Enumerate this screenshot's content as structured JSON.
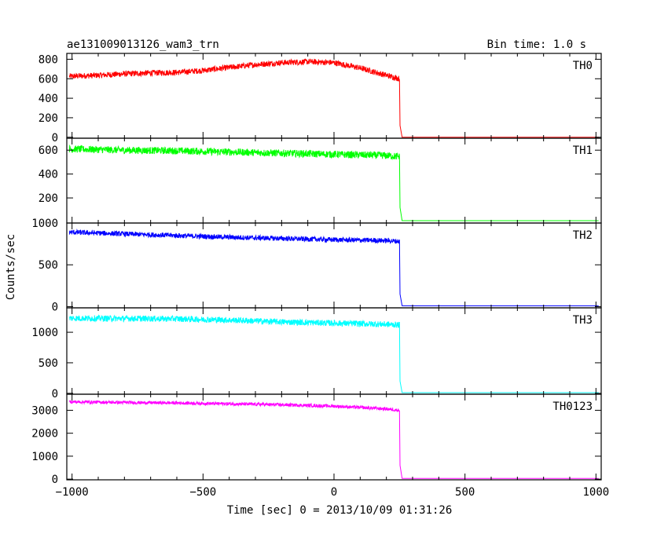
{
  "chart_data": {
    "type": "line",
    "title": "ae131009013126_wam3_trn",
    "subtitle": "Bin time: 1.0 s",
    "xlabel": "Time [sec] 0 = 2013/10/09 01:31:26",
    "ylabel": "Counts/sec",
    "xlim": [
      -1020,
      1020
    ],
    "x_ticks": [
      -1000,
      -500,
      0,
      500,
      1000
    ],
    "x_tick_labels": [
      "−1000",
      "−500",
      "0",
      "500",
      "1000"
    ],
    "grid": false,
    "panels": [
      {
        "name": "TH0",
        "color": "#ff0000",
        "ylim": [
          -10,
          860
        ],
        "y_ticks": [
          0,
          200,
          400,
          600,
          800
        ],
        "x": [
          -1010,
          -900,
          -800,
          -700,
          -600,
          -500,
          -400,
          -300,
          -200,
          -100,
          0,
          100,
          200,
          250,
          252,
          260,
          1010
        ],
        "values": [
          625,
          635,
          650,
          660,
          665,
          685,
          715,
          745,
          765,
          775,
          765,
          710,
          635,
          600,
          120,
          0,
          0
        ],
        "noise": 30
      },
      {
        "name": "TH1",
        "color": "#00ff00",
        "ylim": [
          -10,
          700
        ],
        "y_ticks": [
          200,
          400,
          600
        ],
        "x": [
          -1010,
          -800,
          -600,
          -400,
          -200,
          0,
          200,
          250,
          252,
          260,
          1010
        ],
        "values": [
          610,
          600,
          595,
          585,
          575,
          565,
          555,
          545,
          120,
          10,
          10
        ],
        "noise": 30
      },
      {
        "name": "TH2",
        "color": "#0000ff",
        "ylim": [
          -15,
          1000
        ],
        "y_ticks": [
          0,
          500,
          1000
        ],
        "x": [
          -1010,
          -800,
          -600,
          -400,
          -200,
          0,
          200,
          250,
          252,
          260,
          1010
        ],
        "values": [
          890,
          870,
          850,
          830,
          815,
          800,
          790,
          780,
          150,
          10,
          10
        ],
        "noise": 30
      },
      {
        "name": "TH3",
        "color": "#00ffff",
        "ylim": [
          -15,
          1400
        ],
        "y_ticks": [
          0,
          500,
          1000
        ],
        "x": [
          -1010,
          -800,
          -600,
          -400,
          -200,
          0,
          200,
          250,
          252,
          260,
          1010
        ],
        "values": [
          1230,
          1225,
          1220,
          1200,
          1170,
          1150,
          1130,
          1120,
          200,
          10,
          10
        ],
        "noise": 50
      },
      {
        "name": "TH0123",
        "color": "#ff00ff",
        "ylim": [
          -30,
          3700
        ],
        "y_ticks": [
          0,
          1000,
          2000,
          3000
        ],
        "x": [
          -1010,
          -800,
          -600,
          -400,
          -200,
          0,
          200,
          250,
          252,
          260,
          1010
        ],
        "values": [
          3370,
          3340,
          3320,
          3280,
          3240,
          3180,
          3060,
          3000,
          600,
          30,
          30
        ],
        "noise": 70
      }
    ]
  }
}
